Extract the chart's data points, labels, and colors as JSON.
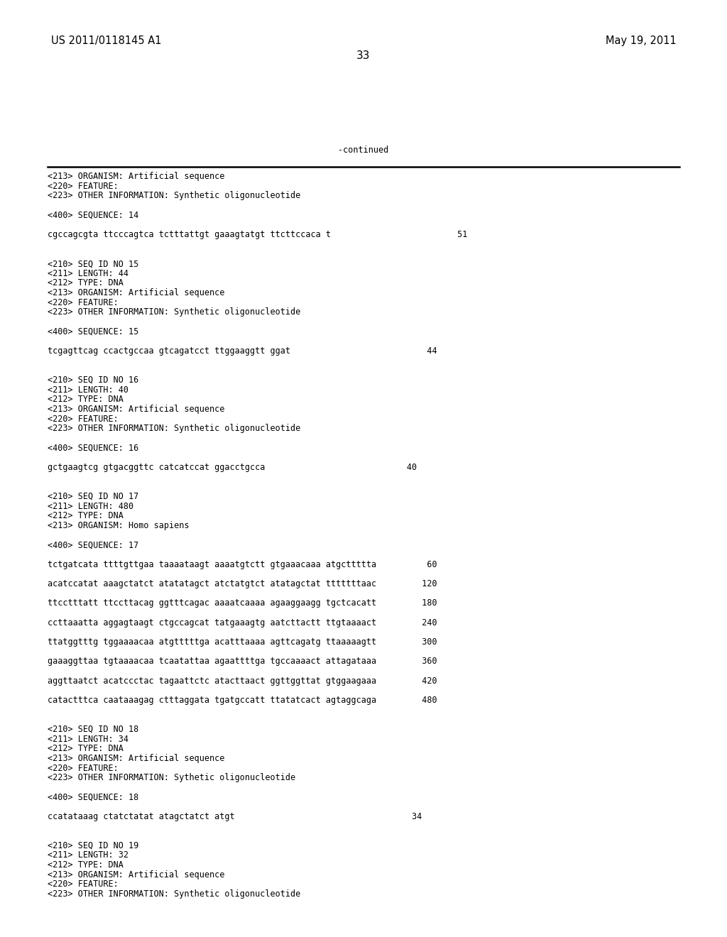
{
  "header_left": "US 2011/0118145 A1",
  "header_right": "May 19, 2011",
  "page_number": "33",
  "continued_label": "-continued",
  "background_color": "#ffffff",
  "text_color": "#000000",
  "mono_font_size": 8.5,
  "header_font_size": 10.5,
  "page_num_font_size": 11,
  "content_lines": [
    "<213> ORGANISM: Artificial sequence",
    "<220> FEATURE:",
    "<223> OTHER INFORMATION: Synthetic oligonucleotide",
    "",
    "<400> SEQUENCE: 14",
    "",
    "cgccagcgta ttcccagtca tctttattgt gaaagtatgt ttcttccaca t                         51",
    "",
    "",
    "<210> SEQ ID NO 15",
    "<211> LENGTH: 44",
    "<212> TYPE: DNA",
    "<213> ORGANISM: Artificial sequence",
    "<220> FEATURE:",
    "<223> OTHER INFORMATION: Synthetic oligonucleotide",
    "",
    "<400> SEQUENCE: 15",
    "",
    "tcgagttcag ccactgccaa gtcagatcct ttggaaggtt ggat                           44",
    "",
    "",
    "<210> SEQ ID NO 16",
    "<211> LENGTH: 40",
    "<212> TYPE: DNA",
    "<213> ORGANISM: Artificial sequence",
    "<220> FEATURE:",
    "<223> OTHER INFORMATION: Synthetic oligonucleotide",
    "",
    "<400> SEQUENCE: 16",
    "",
    "gctgaagtcg gtgacggttc catcatccat ggacctgcca                            40",
    "",
    "",
    "<210> SEQ ID NO 17",
    "<211> LENGTH: 480",
    "<212> TYPE: DNA",
    "<213> ORGANISM: Homo sapiens",
    "",
    "<400> SEQUENCE: 17",
    "",
    "tctgatcata ttttgttgaa taaaataagt aaaatgtctt gtgaaacaaa atgcttttta          60",
    "",
    "acatccatat aaagctatct atatatagct atctatgtct atatagctat tttttttaac         120",
    "",
    "ttcctttatt ttccttacag ggtttcagac aaaatcaaaa agaaggaagg tgctcacatt         180",
    "",
    "ccttaaatta aggagtaagt ctgccagcat tatgaaagtg aatcttactt ttgtaaaact         240",
    "",
    "ttatggtttg tggaaaacaa atgtttttga acatttaaaa agttcagatg ttaaaaagtt         300",
    "",
    "gaaaggttaa tgtaaaacaa tcaatattaa agaattttga tgccaaaact attagataaa         360",
    "",
    "aggttaatct acatccctac tagaattctc atacttaact ggttggttat gtggaagaaa         420",
    "",
    "catactttca caataaagag ctttaggata tgatgccatt ttatatcact agtaggcaga         480",
    "",
    "",
    "<210> SEQ ID NO 18",
    "<211> LENGTH: 34",
    "<212> TYPE: DNA",
    "<213> ORGANISM: Artificial sequence",
    "<220> FEATURE:",
    "<223> OTHER INFORMATION: Sythetic oligonucleotide",
    "",
    "<400> SEQUENCE: 18",
    "",
    "ccatataaag ctatctatat atagctatct atgt                                   34",
    "",
    "",
    "<210> SEQ ID NO 19",
    "<211> LENGTH: 32",
    "<212> TYPE: DNA",
    "<213> ORGANISM: Artificial sequence",
    "<220> FEATURE:",
    "<223> OTHER INFORMATION: Synthetic oligonucleotide"
  ]
}
